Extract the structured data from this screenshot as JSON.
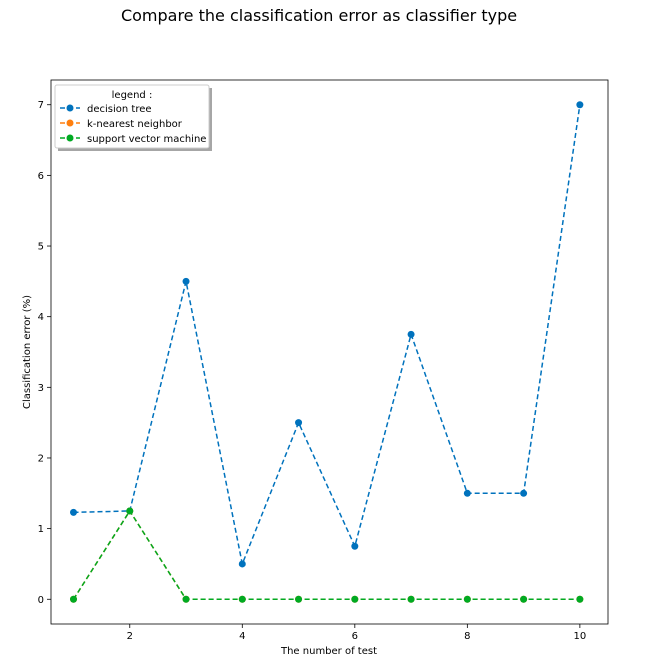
{
  "chart_data": {
    "type": "line",
    "title": "Compare the classification error as classifier type",
    "xlabel": "The number of test",
    "ylabel": "Classification error (%)",
    "x": [
      1,
      2,
      3,
      4,
      5,
      6,
      7,
      8,
      9,
      10
    ],
    "xlim": [
      0.6,
      10.5
    ],
    "ylim": [
      -0.35,
      7.35
    ],
    "xticks": [
      2,
      4,
      6,
      8,
      10
    ],
    "yticks": [
      0,
      1,
      2,
      3,
      4,
      5,
      6,
      7
    ],
    "grid": false,
    "legend": {
      "title": "legend :",
      "placement": "upper-left"
    },
    "series": [
      {
        "name": "decision tree",
        "color": "#0072bd",
        "values": [
          1.23,
          1.25,
          4.5,
          0.5,
          2.5,
          0.75,
          3.75,
          1.5,
          1.5,
          7.0
        ]
      },
      {
        "name": "k-nearest neighbor",
        "color": "#ff7f0e",
        "values": [
          0,
          1.25,
          0,
          0,
          0,
          0,
          0,
          0,
          0,
          0
        ]
      },
      {
        "name": "support vector machine",
        "color": "#00aa22",
        "values": [
          0,
          1.25,
          0,
          0,
          0,
          0,
          0,
          0,
          0,
          0
        ]
      }
    ]
  }
}
